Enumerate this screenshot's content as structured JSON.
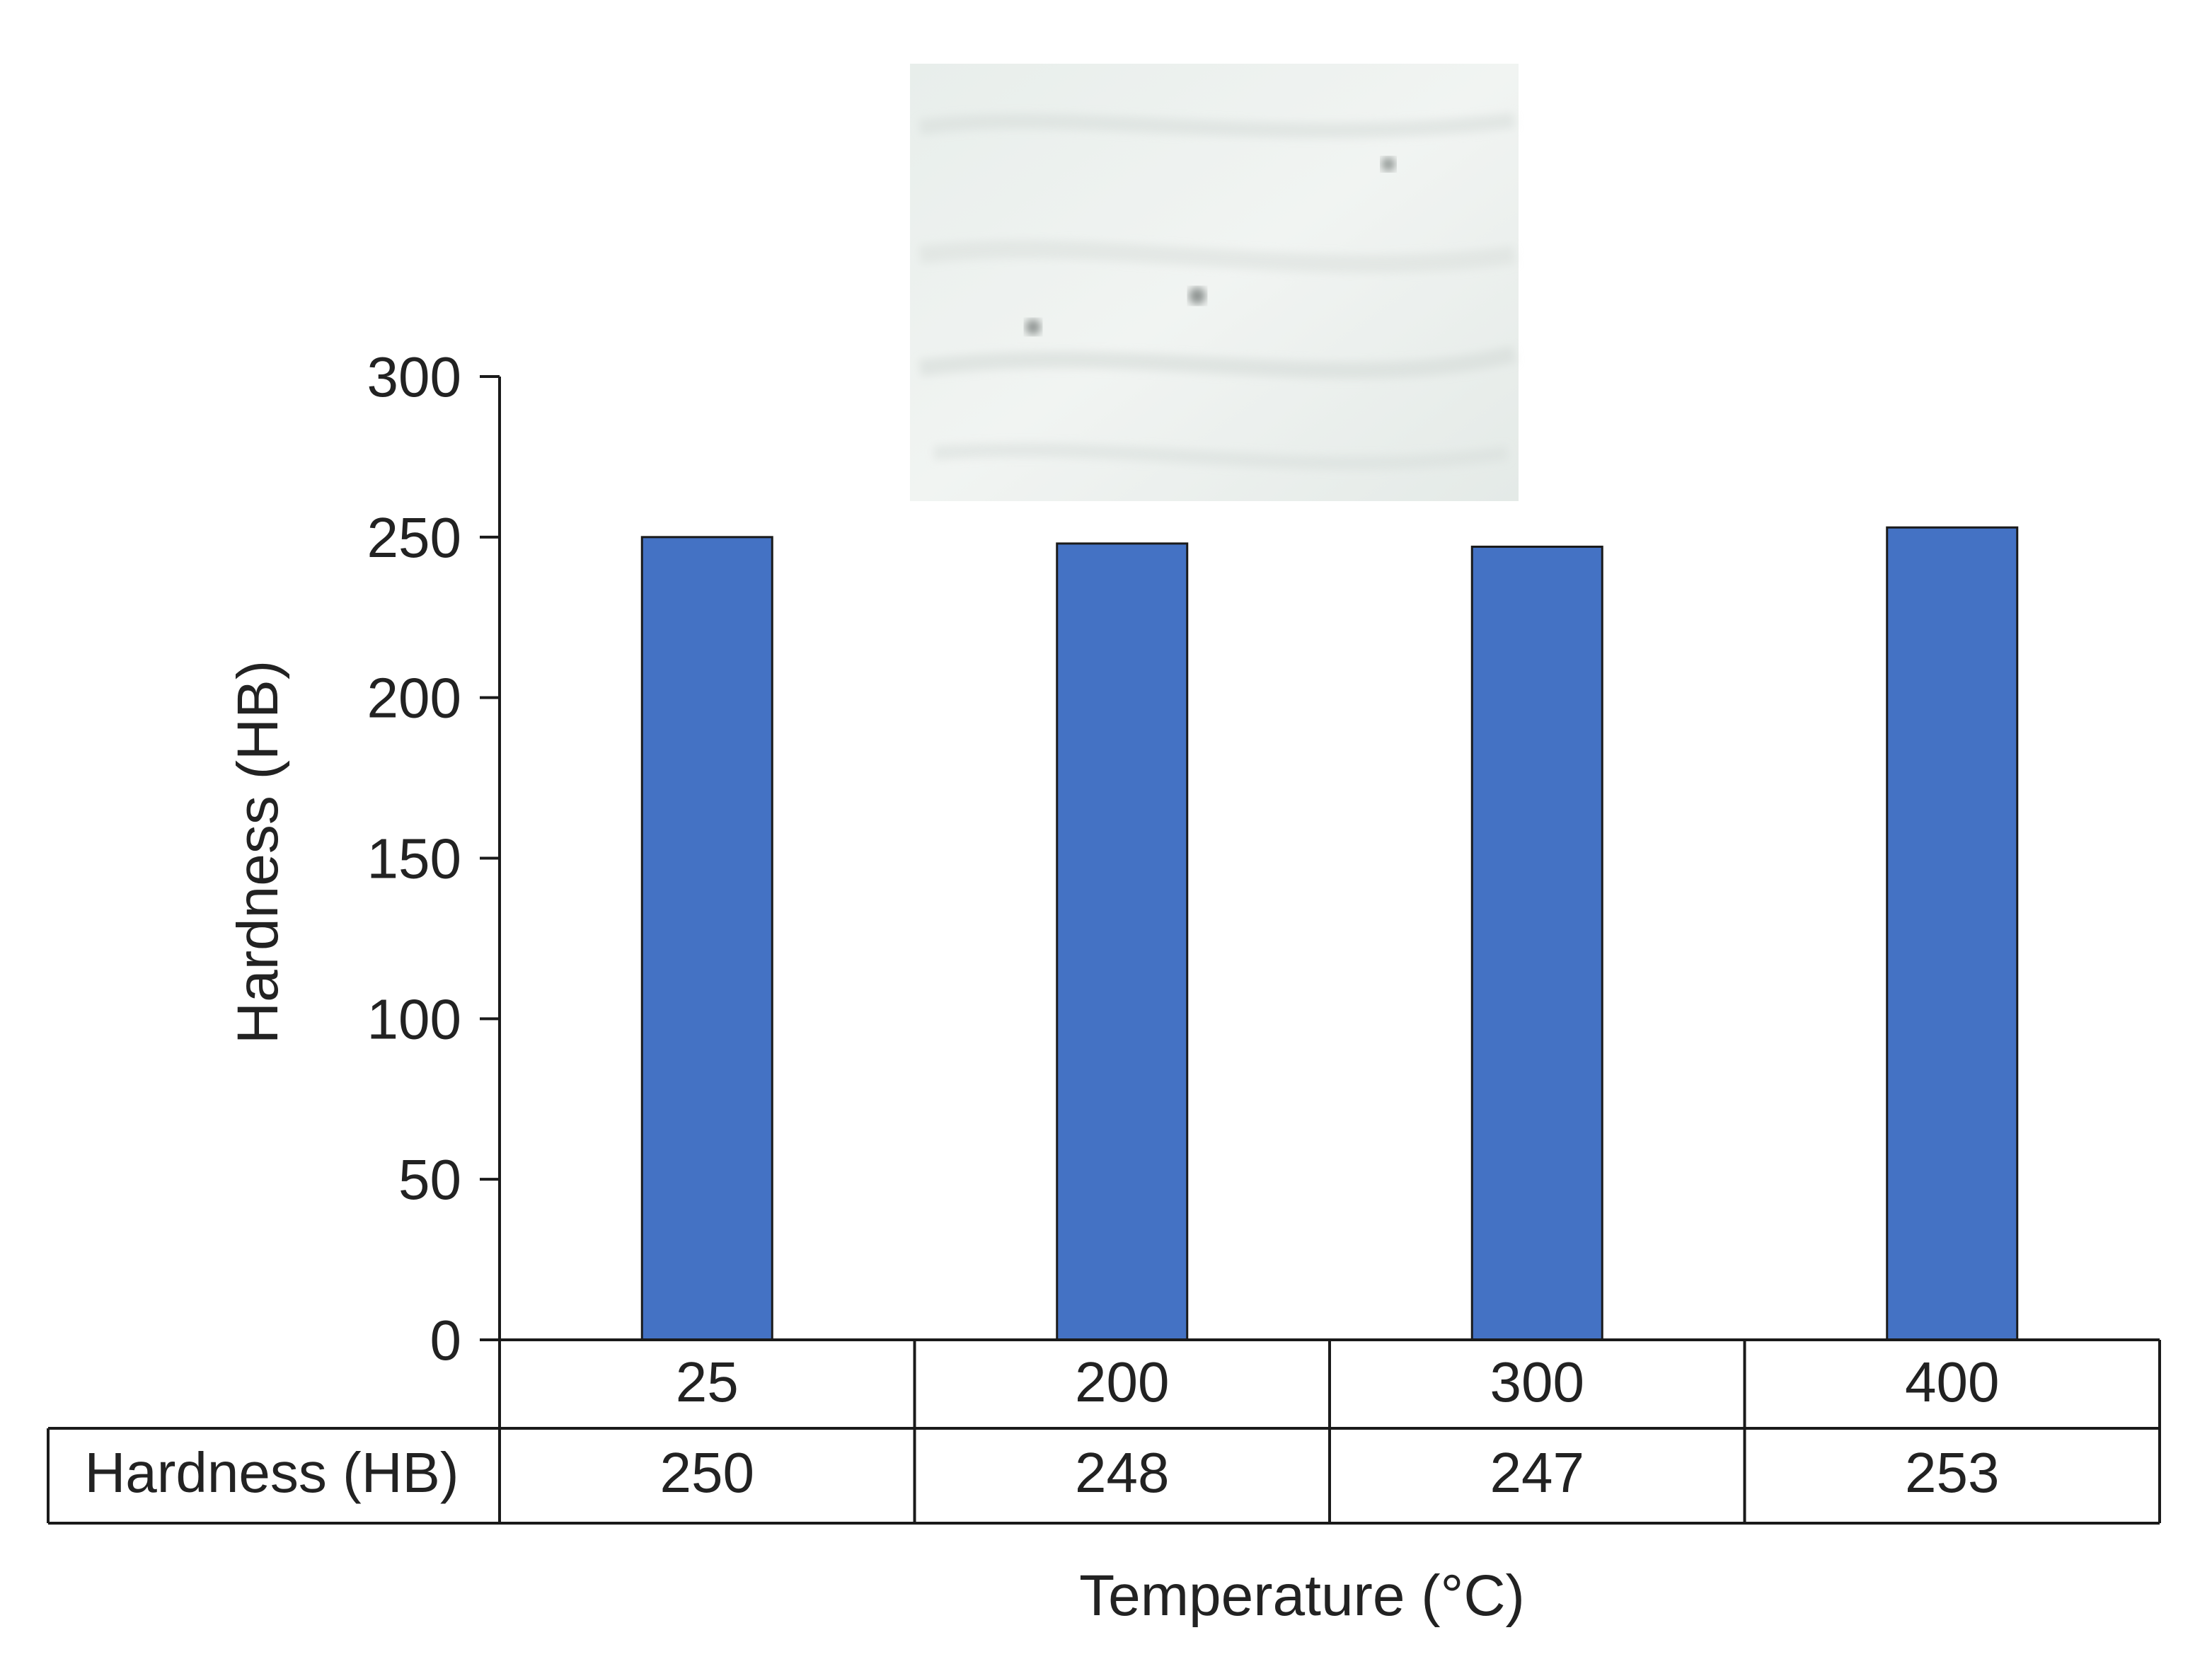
{
  "chart_data": {
    "type": "bar",
    "title": "",
    "categories": [
      "25",
      "200",
      "300",
      "400"
    ],
    "series": [
      {
        "name": "Hardness (HB)",
        "values": [
          250,
          248,
          247,
          253
        ]
      }
    ],
    "xlabel": "Temperature (°C)",
    "ylabel": "Hardness (HB)",
    "ylim": [
      0,
      300
    ],
    "yticks": [
      "0",
      "50",
      "100",
      "150",
      "200",
      "250",
      "300"
    ],
    "grid": false,
    "legend": "none",
    "data_table": {
      "row_label": "Hardness (HB)",
      "values": [
        "250",
        "248",
        "247",
        "253"
      ]
    },
    "colors": {
      "bar": "#4472C4",
      "bar_stroke": "#1a1a1a",
      "axis": "#1a1a1a"
    },
    "inset_image": "micrograph-photo"
  }
}
